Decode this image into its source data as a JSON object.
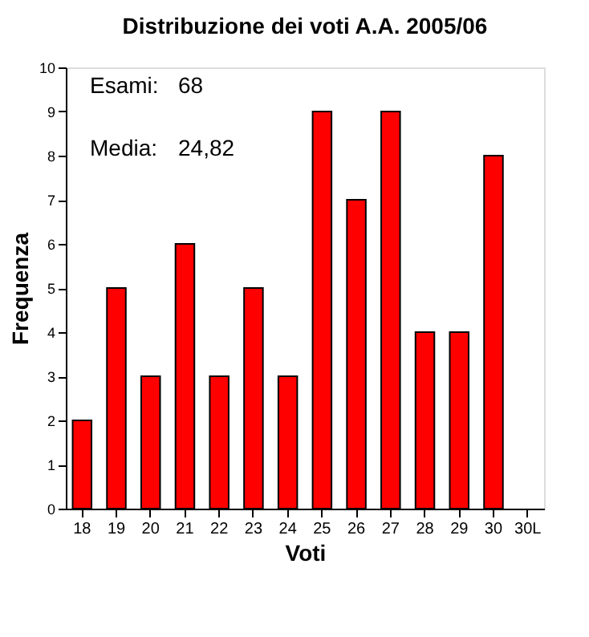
{
  "chart_data": {
    "type": "bar",
    "title": "Distribuzione dei voti A.A. 2005/06",
    "xlabel": "Voti",
    "ylabel": "Frequenza",
    "categories": [
      "18",
      "19",
      "20",
      "21",
      "22",
      "23",
      "24",
      "25",
      "26",
      "27",
      "28",
      "29",
      "30",
      "30L"
    ],
    "values": [
      2,
      5,
      3,
      6,
      3,
      5,
      3,
      9,
      7,
      9,
      4,
      4,
      8,
      null
    ],
    "color": "#ff0000",
    "ylim": [
      0,
      10
    ],
    "yticks": [
      0,
      1,
      2,
      3,
      4,
      5,
      6,
      7,
      8,
      9,
      10
    ],
    "grid": false,
    "annotations": [
      "Esami:",
      "68",
      "Media:",
      "24,82"
    ]
  }
}
